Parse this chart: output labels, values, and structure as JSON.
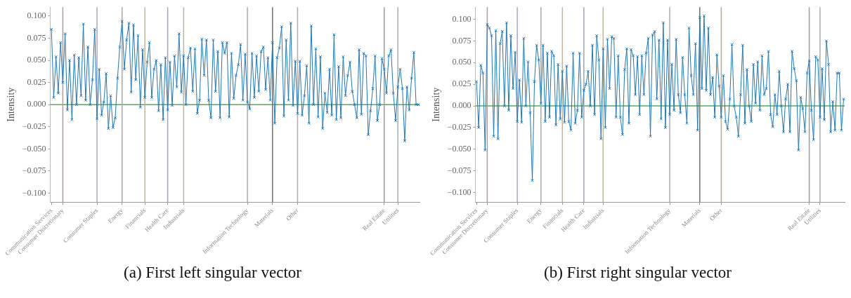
{
  "chart_data": [
    {
      "type": "line",
      "title": "(a) First left singular vector",
      "ylabel": "Intensity",
      "marker": "cross",
      "grid": false,
      "categories": [
        "Communication Services",
        null,
        null,
        null,
        null,
        "Consumer Discretionary",
        null,
        null,
        null,
        null,
        null,
        null,
        null,
        null,
        null,
        null,
        null,
        null,
        null,
        null,
        "Consumer Staples",
        null,
        null,
        null,
        null,
        null,
        null,
        null,
        null,
        null,
        null,
        "Energy",
        null,
        null,
        null,
        null,
        null,
        null,
        null,
        null,
        null,
        "Financials",
        null,
        null,
        null,
        null,
        null,
        null,
        null,
        null,
        null,
        "Health Care",
        null,
        null,
        null,
        null,
        null,
        null,
        "Industrials",
        null,
        null,
        null,
        null,
        null,
        null,
        null,
        null,
        null,
        null,
        null,
        null,
        null,
        null,
        null,
        null,
        null,
        null,
        null,
        null,
        null,
        null,
        null,
        null,
        null,
        null,
        null,
        "Information Technology",
        null,
        null,
        null,
        null,
        null,
        null,
        null,
        null,
        null,
        null,
        "Materials",
        null,
        null,
        null,
        null,
        null,
        null,
        null,
        null,
        null,
        null,
        "Other",
        null,
        null,
        null,
        null,
        null,
        null,
        null,
        null,
        null,
        null,
        null,
        null,
        null,
        null,
        null,
        null,
        null,
        null,
        null,
        null,
        null,
        null,
        null,
        null,
        null,
        null,
        null,
        null,
        null,
        null,
        null,
        null,
        null,
        null,
        null,
        null,
        null,
        "Real Estate",
        null,
        null,
        null,
        null,
        null,
        "Utilities",
        null,
        null,
        null,
        null,
        null,
        null,
        null,
        null,
        null
      ],
      "ylim": [
        -0.11,
        0.11
      ],
      "yticks": [
        {
          "value": 0.1,
          "label": "0.100"
        },
        {
          "value": 0.075,
          "label": "0.075"
        },
        {
          "value": 0.05,
          "label": "0.050"
        },
        {
          "value": 0.025,
          "label": "0.025"
        },
        {
          "value": 0,
          "label": "0.000"
        },
        {
          "value": -0.025,
          "label": "−0.025"
        },
        {
          "value": -0.05,
          "label": "−0.050"
        },
        {
          "value": -0.075,
          "label": "−0.075"
        },
        {
          "value": -0.1,
          "label": "−0.100"
        }
      ],
      "ref_lines": [
        {
          "axis": "y",
          "value": 0,
          "color": "#4caf50"
        },
        {
          "axis": "x",
          "value": "Consumer Discretionary",
          "color": "#b89a9a"
        },
        {
          "axis": "x",
          "value": "Consumer Staples",
          "color": "#aaa5c2"
        },
        {
          "axis": "x",
          "value": "Energy",
          "color": "#a9a9a9"
        },
        {
          "axis": "x",
          "value": "Financials",
          "color": "#bdb59c"
        },
        {
          "axis": "x",
          "value": "Health Care",
          "color": "#a0a5ae"
        },
        {
          "axis": "x",
          "value": "Industrials",
          "color": "#bab69e"
        },
        {
          "axis": "x",
          "value": "Information Technology",
          "color": "#ababab"
        },
        {
          "axis": "x",
          "value": "Materials",
          "color": "#6e6e6e"
        },
        {
          "axis": "x",
          "value": "Other",
          "color": "#b7ad9c"
        },
        {
          "axis": "x",
          "value": "Real Estate",
          "color": "#9c9c9c"
        },
        {
          "axis": "x",
          "value": "Utilities",
          "color": "#a5adad"
        }
      ],
      "series": [
        {
          "color": "#1f77b4",
          "values": [
            0.085,
            0.008,
            0.054,
            0.013,
            0.07,
            0.025,
            0.08,
            -0.006,
            0.05,
            -0.017,
            0.056,
            0.0,
            0.053,
            0.01,
            0.091,
            0.005,
            0.065,
            0.0,
            0.028,
            0.085,
            -0.016,
            0.04,
            -0.012,
            0.003,
            0.035,
            -0.027,
            0.01,
            -0.026,
            -0.015,
            0.03,
            0.065,
            0.094,
            0.04,
            0.073,
            0.092,
            0.014,
            0.09,
            0.028,
            0.078,
            -0.003,
            0.062,
            0.008,
            0.048,
            0.07,
            0.008,
            0.04,
            0.05,
            -0.007,
            0.045,
            -0.017,
            0.053,
            -0.006,
            0.048,
            -0.001,
            0.055,
            0.02,
            0.08,
            0.014,
            0.055,
            0.0,
            0.053,
            0.064,
            0.015,
            0.063,
            -0.01,
            0.005,
            0.074,
            0.033,
            0.073,
            0.005,
            -0.015,
            0.073,
            0.015,
            0.06,
            -0.015,
            0.07,
            0.058,
            0.07,
            -0.014,
            0.058,
            0.007,
            0.033,
            0.045,
            0.068,
            0.005,
            0.057,
            0.003,
            -0.005,
            0.058,
            0.008,
            0.055,
            0.015,
            0.06,
            0.065,
            0.017,
            0.053,
            0.005,
            0.07,
            -0.021,
            0.053,
            0.064,
            0.088,
            -0.013,
            0.073,
            0.005,
            0.092,
            -0.001,
            0.049,
            -0.01,
            0.049,
            -0.012,
            0.01,
            0.044,
            -0.021,
            0.089,
            0.0,
            0.063,
            -0.014,
            0.054,
            -0.027,
            0.013,
            -0.009,
            0.04,
            -0.012,
            0.079,
            -0.017,
            0.043,
            -0.015,
            0.054,
            0.01,
            0.033,
            0.048,
            0.015,
            0.0,
            -0.015,
            0.062,
            -0.011,
            0.058,
            0.055,
            -0.034,
            -0.007,
            0.018,
            0.055,
            -0.018,
            0.0,
            0.052,
            0.04,
            0.013,
            0.055,
            0.062,
            0.013,
            -0.018,
            0.02,
            0.04,
            0.018,
            -0.041,
            0.02,
            -0.006,
            0.03,
            0.059,
            0.0,
            0.0
          ]
        }
      ]
    },
    {
      "type": "line",
      "title": "(b) First right singular vector",
      "ylabel": "Intensity",
      "marker": "cross",
      "grid": false,
      "categories": [
        "Communication Services",
        null,
        null,
        null,
        null,
        "Consumer Discretionary",
        null,
        null,
        null,
        null,
        null,
        null,
        null,
        null,
        null,
        null,
        null,
        null,
        null,
        "Consumer Staples",
        null,
        null,
        null,
        null,
        null,
        null,
        null,
        null,
        null,
        null,
        "Energy",
        null,
        null,
        null,
        null,
        null,
        null,
        null,
        null,
        null,
        "Financials",
        null,
        null,
        null,
        null,
        null,
        null,
        null,
        null,
        null,
        "Health Care",
        null,
        null,
        null,
        null,
        null,
        null,
        null,
        null,
        "Industrials",
        null,
        null,
        null,
        null,
        null,
        null,
        null,
        null,
        null,
        null,
        null,
        null,
        null,
        null,
        null,
        null,
        null,
        null,
        null,
        null,
        null,
        null,
        null,
        null,
        null,
        null,
        null,
        null,
        null,
        null,
        "Information Technology",
        null,
        null,
        null,
        null,
        null,
        null,
        null,
        null,
        null,
        null,
        null,
        null,
        null,
        "Materials",
        null,
        null,
        null,
        null,
        null,
        null,
        null,
        null,
        null,
        "Other",
        null,
        null,
        null,
        null,
        null,
        null,
        null,
        null,
        null,
        null,
        null,
        null,
        null,
        null,
        null,
        null,
        null,
        null,
        null,
        null,
        null,
        null,
        null,
        null,
        null,
        null,
        null,
        null,
        null,
        null,
        null,
        null,
        null,
        null,
        null,
        null,
        null,
        null,
        null,
        null,
        "Real Estate",
        null,
        null,
        null,
        null,
        "Utilities",
        null,
        null,
        null,
        null,
        null,
        null,
        null,
        null,
        null,
        null,
        null
      ],
      "ylim": [
        -0.111,
        0.114
      ],
      "yticks": [
        {
          "value": 0.1,
          "label": "0.100"
        },
        {
          "value": 0.075,
          "label": "0.075"
        },
        {
          "value": 0.05,
          "label": "0.050"
        },
        {
          "value": 0.025,
          "label": "0.025"
        },
        {
          "value": 0,
          "label": "0.000"
        },
        {
          "value": -0.025,
          "label": "−0.025"
        },
        {
          "value": -0.05,
          "label": "−0.050"
        },
        {
          "value": -0.075,
          "label": "−0.075"
        },
        {
          "value": -0.1,
          "label": "−0.100"
        }
      ],
      "ref_lines": [
        {
          "axis": "y",
          "value": 0,
          "color": "#4caf50"
        },
        {
          "axis": "x",
          "value": "Consumer Discretionary",
          "color": "#b89a9a"
        },
        {
          "axis": "x",
          "value": "Consumer Staples",
          "color": "#aaa5c2"
        },
        {
          "axis": "x",
          "value": "Energy",
          "color": "#a9a9a9"
        },
        {
          "axis": "x",
          "value": "Financials",
          "color": "#bdb59c"
        },
        {
          "axis": "x",
          "value": "Health Care",
          "color": "#a0a5ae"
        },
        {
          "axis": "x",
          "value": "Industrials",
          "color": "#bab69e"
        },
        {
          "axis": "x",
          "value": "Information Technology",
          "color": "#ababab"
        },
        {
          "axis": "x",
          "value": "Materials",
          "color": "#6e6e6e"
        },
        {
          "axis": "x",
          "value": "Other",
          "color": "#b7ad9c"
        },
        {
          "axis": "x",
          "value": "Real Estate",
          "color": "#9c9c9c"
        },
        {
          "axis": "x",
          "value": "Utilities",
          "color": "#a5adad"
        }
      ],
      "series": [
        {
          "color": "#1f77b4",
          "values": [
            0.028,
            -0.025,
            0.047,
            0.038,
            -0.051,
            0.094,
            0.09,
            0.081,
            -0.035,
            0.087,
            -0.038,
            0.072,
            0.086,
            0.0,
            0.096,
            -0.005,
            0.081,
            0.02,
            0.062,
            -0.018,
            0.03,
            -0.019,
            0.078,
            0.0,
            0.051,
            -0.008,
            -0.086,
            0.028,
            0.07,
            0.053,
            0.003,
            0.07,
            -0.018,
            0.061,
            -0.013,
            0.063,
            0.058,
            -0.022,
            0.048,
            -0.015,
            0.04,
            -0.019,
            0.046,
            -0.018,
            -0.028,
            0.061,
            -0.02,
            -0.005,
            0.061,
            -0.013,
            0.018,
            0.025,
            0.04,
            0.0,
            0.07,
            -0.01,
            0.081,
            0.053,
            -0.038,
            0.066,
            -0.025,
            0.077,
            0.02,
            0.08,
            0.078,
            -0.013,
            0.058,
            -0.013,
            -0.033,
            0.042,
            0.066,
            -0.02,
            0.065,
            0.058,
            0.013,
            0.057,
            -0.01,
            0.058,
            0.013,
            0.061,
            0.078,
            -0.035,
            0.082,
            0.086,
            0.008,
            0.076,
            -0.015,
            0.096,
            -0.025,
            0.076,
            -0.01,
            0.048,
            -0.005,
            0.077,
            0.013,
            -0.008,
            0.056,
            0.013,
            -0.02,
            0.09,
            0.035,
            0.013,
            0.072,
            -0.028,
            0.102,
            0.02,
            0.104,
            0.018,
            0.09,
            0.013,
            0.033,
            -0.013,
            0.059,
            0.023,
            -0.013,
            0.035,
            -0.018,
            -0.027,
            0.008,
            0.071,
            0.0,
            -0.013,
            -0.035,
            0.013,
            0.07,
            -0.02,
            0.042,
            0.0,
            -0.018,
            0.048,
            0.003,
            0.051,
            -0.005,
            0.058,
            0.013,
            0.02,
            0.063,
            -0.01,
            -0.024,
            0.013,
            -0.01,
            0.04,
            0.0,
            -0.03,
            0.008,
            0.025,
            -0.03,
            0.063,
            0.043,
            0.029,
            -0.051,
            0.01,
            -0.003,
            -0.03,
            0.038,
            0.052,
            -0.005,
            -0.039,
            0.057,
            0.053,
            -0.013,
            0.043,
            -0.016,
            0.075,
            0.048,
            -0.03,
            0.005,
            -0.028,
            0.038,
            0.038,
            -0.028,
            0.008
          ]
        }
      ]
    }
  ]
}
